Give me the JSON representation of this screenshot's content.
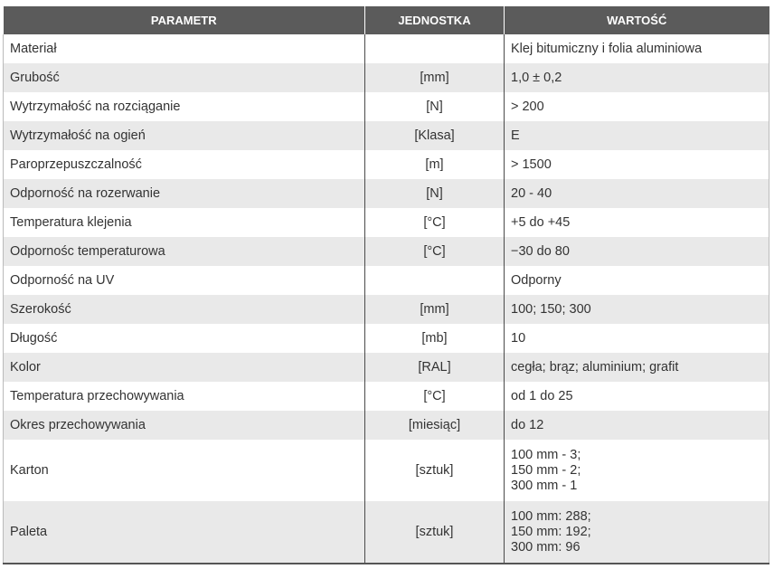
{
  "table": {
    "header": [
      "PARAMETR",
      "JEDNOSTKA",
      "WARTOŚĆ"
    ],
    "rows": [
      {
        "parameter": "Materiał",
        "value": [
          "Klej bitumiczny i folia aluminiowa"
        ]
      },
      {
        "parameter": "Grubość",
        "unit": "[mm]",
        "value": [
          "1,0 ± 0,2"
        ]
      },
      {
        "parameter": "Wytrzymałość na rozciąganie",
        "unit": "[N]",
        "value": [
          "> 200"
        ]
      },
      {
        "parameter": "Wytrzymałość na ogień",
        "unit": "[Klasa]",
        "value": [
          "E"
        ]
      },
      {
        "parameter": "Paroprzepuszczalność",
        "unit": "[m]",
        "value": [
          "> 1500"
        ]
      },
      {
        "parameter": "Odporność na rozerwanie",
        "unit": "[N]",
        "value": [
          "20 - 40"
        ]
      },
      {
        "parameter": "Temperatura klejenia",
        "unit": "[°C]",
        "value": [
          "+5 do +45"
        ]
      },
      {
        "parameter": "Odpornośc temperaturowa",
        "unit": "[°C]",
        "value": [
          "−30 do 80"
        ]
      },
      {
        "parameter": "Odporność na UV",
        "value": [
          "Odporny"
        ]
      },
      {
        "parameter": "Szerokość",
        "unit": "[mm]",
        "value": [
          "100; 150; 300"
        ]
      },
      {
        "parameter": "Długość",
        "unit": "[mb]",
        "value": [
          "10"
        ]
      },
      {
        "parameter": "Kolor",
        "unit": "[RAL]",
        "value": [
          "cegła; brąz; aluminium; grafit"
        ]
      },
      {
        "parameter": "Temperatura przechowywania",
        "unit": "[°C]",
        "value": [
          "od 1 do 25"
        ]
      },
      {
        "parameter": "Okres przechowywania",
        "unit": "[miesiąc]",
        "value": [
          "do 12"
        ]
      },
      {
        "parameter": "Karton",
        "unit": "[sztuk]",
        "value": [
          "100 mm - 3;",
          "150 mm - 2;",
          "300 mm - 1"
        ]
      },
      {
        "parameter": "Paleta",
        "unit": "[sztuk]",
        "value": [
          "100 mm: 288;",
          "150 mm: 192;",
          "300 mm: 96"
        ]
      }
    ]
  }
}
